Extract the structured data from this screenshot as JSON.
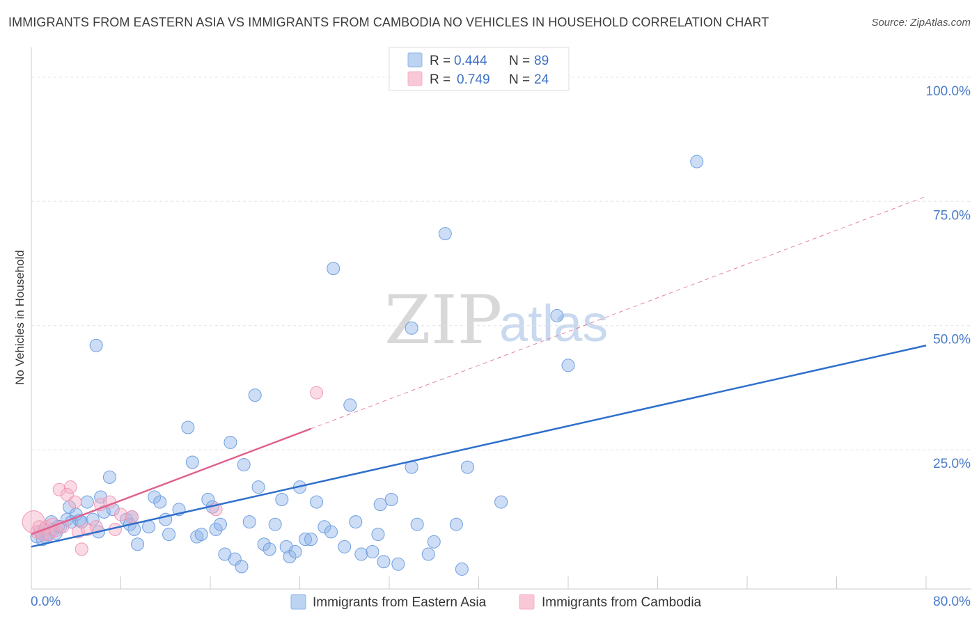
{
  "title": "IMMIGRANTS FROM EASTERN ASIA VS IMMIGRANTS FROM CAMBODIA NO VEHICLES IN HOUSEHOLD CORRELATION CHART",
  "source": "Source: ZipAtlas.com",
  "watermark": {
    "zip": "ZIP",
    "atlas": "atlas"
  },
  "chart_data": {
    "type": "scatter",
    "title": "IMMIGRANTS FROM EASTERN ASIA VS IMMIGRANTS FROM CAMBODIA NO VEHICLES IN HOUSEHOLD CORRELATION CHART",
    "xlabel": "",
    "ylabel": "No Vehicles in Household",
    "xlim": [
      0,
      80
    ],
    "ylim": [
      -3,
      106
    ],
    "x_tick_labels": {
      "min": "0.0%",
      "max": "80.0%"
    },
    "y_ticks": [
      {
        "value": 25,
        "label": "25.0%"
      },
      {
        "value": 50,
        "label": "50.0%"
      },
      {
        "value": 75,
        "label": "75.0%"
      },
      {
        "value": 100,
        "label": "100.0%"
      }
    ],
    "legend": {
      "placement": "top-center",
      "entries": [
        {
          "r_label": "R =",
          "r_value": "0.444",
          "n_label": "N =",
          "n_value": "89"
        },
        {
          "r_label": "R =",
          "r_value": "0.749",
          "n_label": "N =",
          "n_value": "24"
        }
      ]
    },
    "series": [
      {
        "name": "Immigrants from Eastern Asia",
        "color": "#8fb4e8",
        "line_color": "#2f6fcb",
        "trend": {
          "x0": 0,
          "y0": 5.5,
          "x1": 80,
          "y1": 46
        },
        "points": [
          [
            0.5,
            7.5
          ],
          [
            0.8,
            8.5
          ],
          [
            1.0,
            7.0
          ],
          [
            1.2,
            9.0
          ],
          [
            1.5,
            8.0
          ],
          [
            1.8,
            10.5
          ],
          [
            2.0,
            9.0
          ],
          [
            2.2,
            8.2
          ],
          [
            2.6,
            9.5
          ],
          [
            3.2,
            11
          ],
          [
            3.4,
            13.5
          ],
          [
            3.6,
            10.5
          ],
          [
            4.0,
            12
          ],
          [
            4.3,
            10.8
          ],
          [
            5.0,
            14.5
          ],
          [
            6.2,
            15.5
          ],
          [
            4.5,
            10.5
          ],
          [
            5.5,
            11
          ],
          [
            6.0,
            8.5
          ],
          [
            6.5,
            12.5
          ],
          [
            7.0,
            19.5
          ],
          [
            7.3,
            13
          ],
          [
            8.5,
            11
          ],
          [
            8.8,
            10
          ],
          [
            9.5,
            6
          ],
          [
            9.2,
            9
          ],
          [
            10.5,
            9.5
          ],
          [
            11.0,
            15.5
          ],
          [
            11.5,
            14.5
          ],
          [
            12.0,
            11
          ],
          [
            12.3,
            8
          ],
          [
            13.2,
            13
          ],
          [
            14.0,
            29.5
          ],
          [
            14.4,
            22.5
          ],
          [
            14.8,
            7.5
          ],
          [
            15.2,
            8
          ],
          [
            15.8,
            15
          ],
          [
            16.2,
            13.5
          ],
          [
            16.5,
            9
          ],
          [
            16.9,
            10
          ],
          [
            17.3,
            4
          ],
          [
            17.8,
            26.5
          ],
          [
            18.2,
            3
          ],
          [
            18.8,
            1.5
          ],
          [
            19.0,
            22
          ],
          [
            19.5,
            10.5
          ],
          [
            20.0,
            36
          ],
          [
            20.3,
            17.5
          ],
          [
            20.8,
            6
          ],
          [
            21.3,
            5
          ],
          [
            21.8,
            10
          ],
          [
            22.4,
            15
          ],
          [
            22.8,
            5.5
          ],
          [
            23.1,
            3.5
          ],
          [
            23.6,
            4.5
          ],
          [
            24.0,
            17.5
          ],
          [
            24.5,
            7
          ],
          [
            25.0,
            7
          ],
          [
            25.5,
            14.5
          ],
          [
            26.2,
            9.5
          ],
          [
            26.8,
            8.5
          ],
          [
            27.0,
            61.5
          ],
          [
            28.0,
            5.5
          ],
          [
            28.5,
            34
          ],
          [
            29.0,
            10.5
          ],
          [
            29.5,
            4
          ],
          [
            30.5,
            4.5
          ],
          [
            31.0,
            8
          ],
          [
            31.2,
            14
          ],
          [
            31.5,
            2.5
          ],
          [
            32.2,
            15
          ],
          [
            32.8,
            2
          ],
          [
            34.0,
            49.5
          ],
          [
            34.0,
            21.5
          ],
          [
            34.5,
            10
          ],
          [
            35.5,
            4
          ],
          [
            36.0,
            6.5
          ],
          [
            37.0,
            68.5
          ],
          [
            38.0,
            10
          ],
          [
            38.5,
            1
          ],
          [
            39.0,
            21.5
          ],
          [
            42.0,
            14.5
          ],
          [
            47.0,
            52
          ],
          [
            48.0,
            42
          ],
          [
            59.5,
            83
          ],
          [
            5.8,
            46
          ],
          [
            9.0,
            11.5
          ],
          [
            1.3,
            7.4
          ],
          [
            2.4,
            9.6
          ]
        ]
      },
      {
        "name": "Immigrants from Cambodia",
        "color": "#f4b0c6",
        "line_color": "#e0628f",
        "trend": {
          "x0": 0,
          "y0": 8,
          "x1": 80,
          "y1": 76
        },
        "trend_solid_x_end": 25,
        "points": [
          [
            0.2,
            10.5
          ],
          [
            0.5,
            8.5
          ],
          [
            0.7,
            9.5
          ],
          [
            1.0,
            8
          ],
          [
            1.3,
            9.5
          ],
          [
            1.6,
            8
          ],
          [
            1.9,
            10
          ],
          [
            2.2,
            8.8
          ],
          [
            2.5,
            17
          ],
          [
            2.8,
            9.5
          ],
          [
            3.2,
            16
          ],
          [
            3.5,
            17.5
          ],
          [
            3.9,
            14.5
          ],
          [
            4.2,
            8.5
          ],
          [
            4.5,
            5
          ],
          [
            5.0,
            9
          ],
          [
            5.8,
            9.5
          ],
          [
            6.2,
            14
          ],
          [
            7.0,
            14.5
          ],
          [
            7.5,
            9
          ],
          [
            8.0,
            12
          ],
          [
            9.0,
            11.5
          ],
          [
            16.5,
            13
          ],
          [
            25.5,
            36.5
          ]
        ]
      }
    ]
  }
}
